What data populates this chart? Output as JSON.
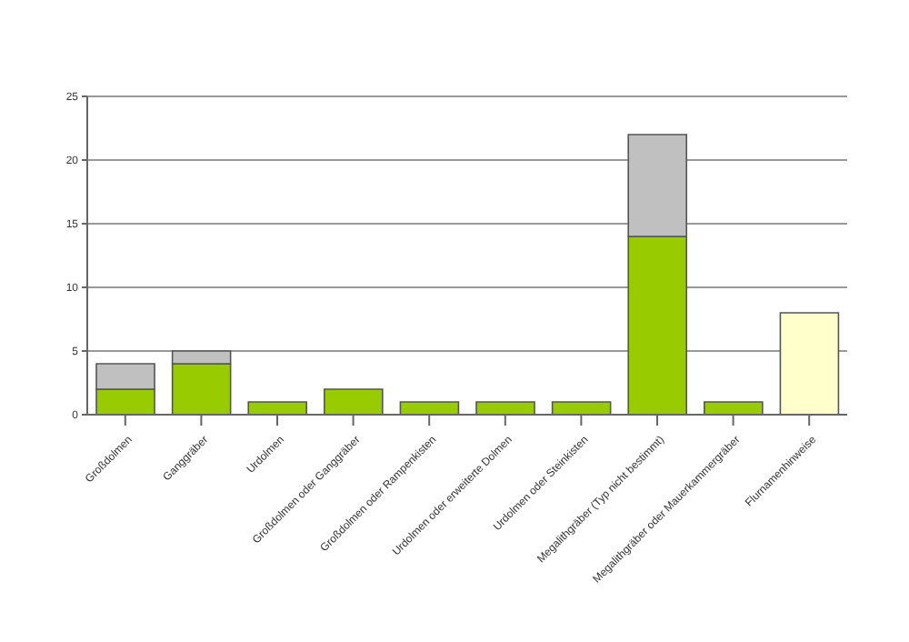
{
  "chart_data": {
    "type": "bar",
    "stacked": true,
    "categories": [
      "Großdolmen",
      "Ganggräber",
      "Urdolmen",
      "Großdolmen oder Ganggräber",
      "Großdolmen oder Rampenkisten",
      "Urdolmen oder erweiterte Dolmen",
      "Urdolmen oder Steinkisten",
      "Megalithgräber (Typ nicht bestimmt)",
      "Megalithgräber oder Mauerkammergräber",
      "Flurnamenhinweise"
    ],
    "series": [
      {
        "color": "#99cc00",
        "values": [
          2,
          4,
          1,
          2,
          1,
          1,
          1,
          14,
          1,
          null
        ]
      },
      {
        "color": "#c0c0c0",
        "values": [
          2,
          1,
          null,
          null,
          null,
          null,
          null,
          8,
          null,
          null
        ]
      },
      {
        "color": "#ffffcc",
        "values": [
          null,
          null,
          null,
          null,
          null,
          null,
          null,
          null,
          null,
          8
        ]
      }
    ],
    "ylim": [
      0,
      25
    ],
    "yticks": [
      0,
      5,
      10,
      15,
      20,
      25
    ],
    "grid": "y",
    "legend": false
  }
}
